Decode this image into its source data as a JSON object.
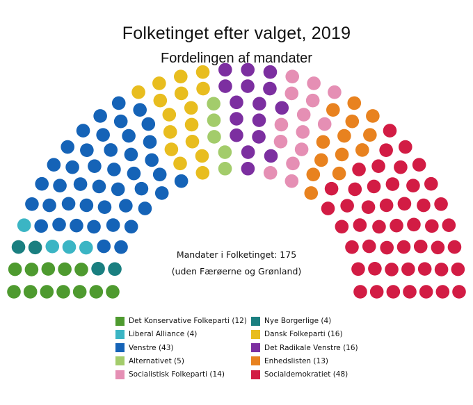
{
  "chart_data": {
    "type": "parliament",
    "title": "Folketinget efter valget, 2019",
    "subtitle": "Fordelingen af mandater",
    "total_seats": 175,
    "center_text": [
      "Mandater i Folketinget: 175",
      "(uden Færøerne og Grønland)"
    ],
    "seat_order": [
      "Det Konservative Folkeparti",
      "Nye Borgerlige",
      "Liberal Alliance",
      "Venstre",
      "Dansk Folkeparti",
      "Alternativet",
      "Det Radikale Venstre",
      "Socialistisk Folkeparti",
      "Enhedslisten",
      "Socialdemokratiet"
    ],
    "parties": [
      {
        "name": "Det Konservative Folkeparti",
        "label": "Det Konservative Folkeparti (12)",
        "seats": 12,
        "color": "#4e9a2f"
      },
      {
        "name": "Nye Borgerlige",
        "label": "Nye Borgerlige (4)",
        "seats": 4,
        "color": "#1a7f80"
      },
      {
        "name": "Liberal Alliance",
        "label": "Liberal Alliance (4)",
        "seats": 4,
        "color": "#3bb5c4"
      },
      {
        "name": "Dansk Folkeparti",
        "label": "Dansk Folkeparti (16)",
        "seats": 16,
        "color": "#e8bd1f"
      },
      {
        "name": "Venstre",
        "label": "Venstre (43)",
        "seats": 43,
        "color": "#1563b7"
      },
      {
        "name": "Det Radikale Venstre",
        "label": "Det Radikale Venstre (16)",
        "seats": 16,
        "color": "#7c2fa0"
      },
      {
        "name": "Alternativet",
        "label": "Alternativet (5)",
        "seats": 5,
        "color": "#a3cc6b"
      },
      {
        "name": "Enhedslisten",
        "label": "Enhedslisten (13)",
        "seats": 13,
        "color": "#e8821f"
      },
      {
        "name": "Socialistisk Folkeparti",
        "label": "Socialistisk Folkeparti (14)",
        "seats": 14,
        "color": "#e58fb4"
      },
      {
        "name": "Socialdemokratiet",
        "label": "Socialdemokratiet (48)",
        "seats": 48,
        "color": "#d21c44"
      }
    ]
  }
}
